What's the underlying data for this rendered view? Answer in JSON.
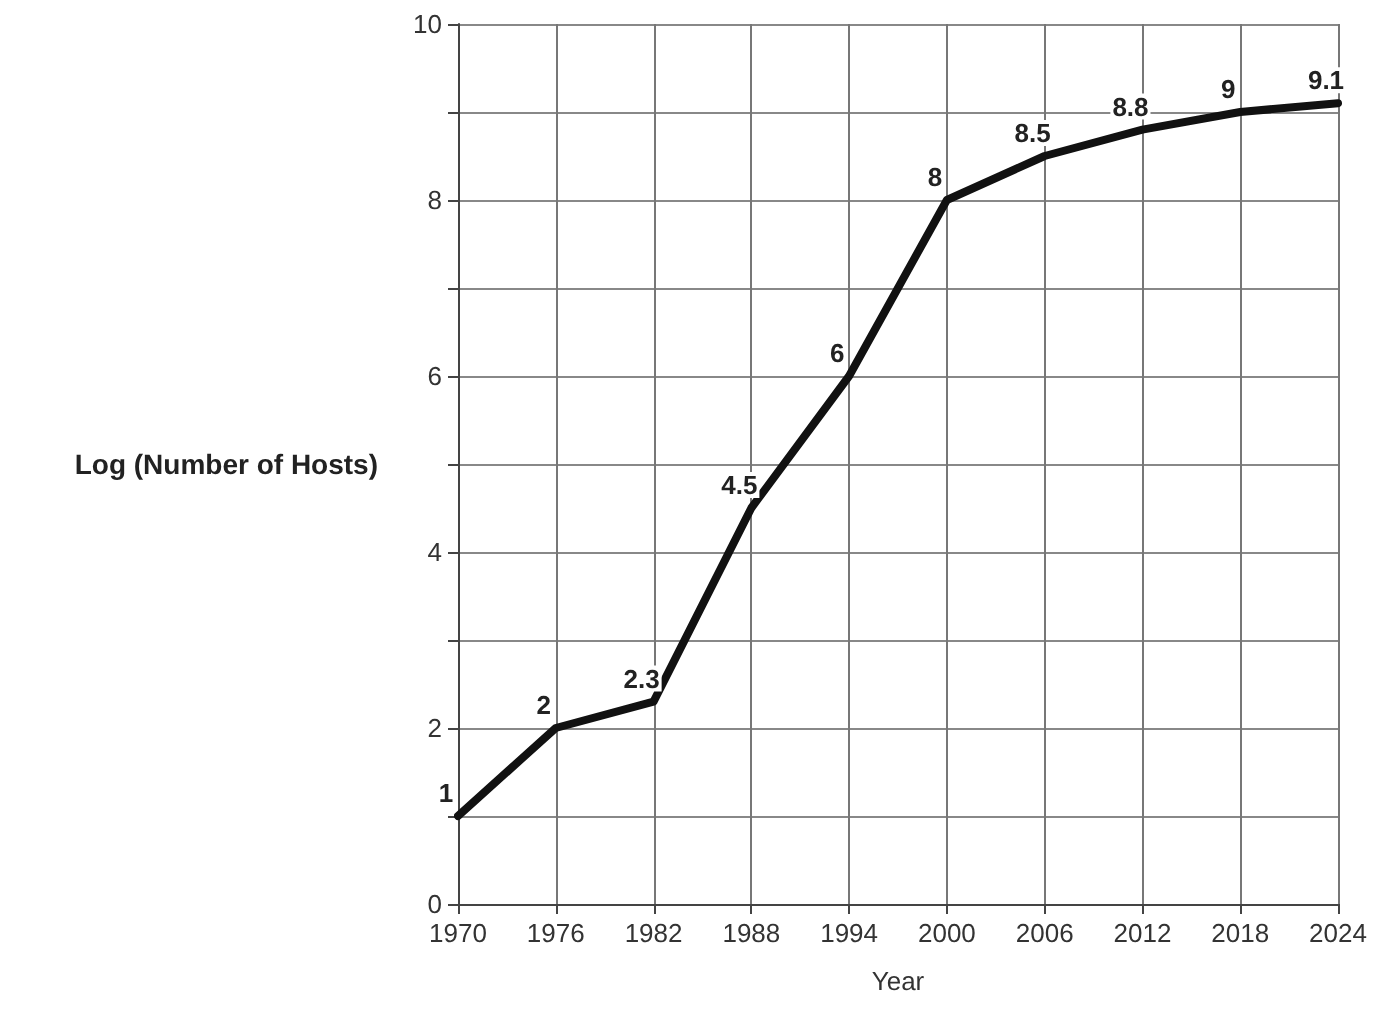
{
  "chart_data": {
    "type": "line",
    "xlabel": "Year",
    "ylabel": "Log (Number of Hosts)",
    "x": [
      1970,
      1976,
      1982,
      1988,
      1994,
      2000,
      2006,
      2012,
      2018,
      2024
    ],
    "series": [
      {
        "color": "#111111",
        "values": [
          1,
          2,
          2.3,
          4.5,
          6,
          8,
          8.5,
          8.8,
          9,
          9.1
        ]
      }
    ],
    "xlim": [
      1970,
      2024
    ],
    "xticks": [
      1970,
      1976,
      1982,
      1988,
      1994,
      2000,
      2006,
      2012,
      2018,
      2024
    ],
    "ylim": [
      0,
      10
    ],
    "yticks": [
      0,
      {
        "value": 1,
        "label": null
      },
      2,
      {
        "value": 3,
        "label": null
      },
      4,
      {
        "value": 5,
        "label": null
      },
      6,
      {
        "value": 7,
        "label": null
      },
      8,
      {
        "value": 9,
        "label": null
      },
      10
    ],
    "grid": true,
    "data_labels": true,
    "marker": "none",
    "line_style": "solid"
  }
}
